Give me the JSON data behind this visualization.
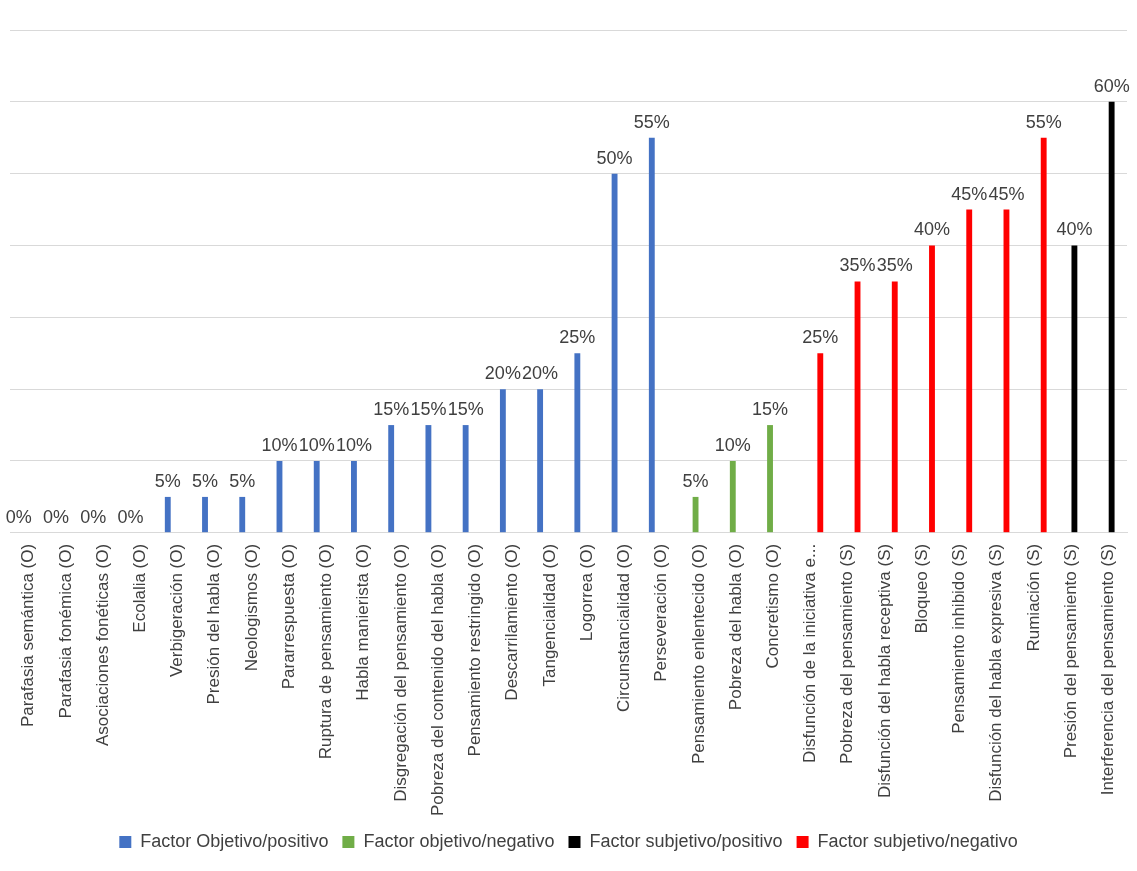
{
  "chart_data": {
    "type": "bar",
    "categories": [
      "Parafasia semántica (O)",
      "Parafasia fonémica (O)",
      "Asociaciones fonéticas (O)",
      "Ecolalia (O)",
      "Verbigeración (O)",
      "Presión del habla (O)",
      "Neologismos (O)",
      "Pararrespuesta (O)",
      "Ruptura de pensamiento (O)",
      "Habla manierista (O)",
      "Disgregación del pensamiento (O)",
      "Pobreza del contenido del habla (O)",
      "Pensamiento restringido (O)",
      "Descarrilamiento (O)",
      "Tangencialidad (O)",
      "Logorrea (O)",
      "Circunstancialidad (O)",
      "Perseveración (O)",
      "Pensamiento enlentecido (O)",
      "Pobreza del habla (O)",
      "Concretismo (O)",
      "Disfunción de la iniciativa e...",
      "Pobreza del pensamiento (S)",
      "Disfunción del habla receptiva (S)",
      "Bloqueo (S)",
      "Pensamiento inhibido (S)",
      "Disfunción del habla expresiva (S)",
      "Rumiación (S)",
      "Presión del pensamiento (S)",
      "Interferencia del pensamiento (S)"
    ],
    "series": [
      {
        "name": "Factor Objetivo/positivo",
        "color": "#4472c4",
        "values": [
          0,
          0,
          0,
          0,
          5,
          5,
          5,
          10,
          10,
          10,
          15,
          15,
          15,
          20,
          20,
          25,
          50,
          55,
          null,
          null,
          null,
          null,
          null,
          null,
          null,
          null,
          null,
          null,
          null,
          null
        ],
        "value_labels": [
          "0%",
          "0%",
          "0%",
          "0%",
          "5%",
          "5%",
          "5%",
          "10%",
          "10%",
          "10%",
          "15%",
          "15%",
          "15%",
          "20%",
          "20%",
          "25%",
          "50%",
          "55%",
          null,
          null,
          null,
          null,
          null,
          null,
          null,
          null,
          null,
          null,
          null,
          null
        ]
      },
      {
        "name": "Factor objetivo/negativo",
        "color": "#70ad47",
        "values": [
          null,
          null,
          null,
          null,
          null,
          null,
          null,
          null,
          null,
          null,
          null,
          null,
          null,
          null,
          null,
          null,
          null,
          null,
          5,
          10,
          15,
          null,
          null,
          null,
          null,
          null,
          null,
          null,
          null,
          null
        ],
        "value_labels": [
          null,
          null,
          null,
          null,
          null,
          null,
          null,
          null,
          null,
          null,
          null,
          null,
          null,
          null,
          null,
          null,
          null,
          null,
          "5%",
          "10%",
          "15%",
          null,
          null,
          null,
          null,
          null,
          null,
          null,
          null,
          null
        ]
      },
      {
        "name": "Factor subjetivo/positivo",
        "color": "#000000",
        "values": [
          null,
          null,
          null,
          null,
          null,
          null,
          null,
          null,
          null,
          null,
          null,
          null,
          null,
          null,
          null,
          null,
          null,
          null,
          null,
          null,
          null,
          null,
          null,
          null,
          null,
          null,
          null,
          null,
          40,
          60
        ],
        "value_labels": [
          null,
          null,
          null,
          null,
          null,
          null,
          null,
          null,
          null,
          null,
          null,
          null,
          null,
          null,
          null,
          null,
          null,
          null,
          null,
          null,
          null,
          null,
          null,
          null,
          null,
          null,
          null,
          null,
          "40%",
          "60%"
        ]
      },
      {
        "name": "Factor subjetivo/negativo",
        "color": "#ff0000",
        "values": [
          null,
          null,
          null,
          null,
          null,
          null,
          null,
          null,
          null,
          null,
          null,
          null,
          null,
          null,
          null,
          null,
          null,
          null,
          null,
          null,
          null,
          25,
          35,
          35,
          40,
          45,
          45,
          55,
          null,
          null
        ],
        "value_labels": [
          null,
          null,
          null,
          null,
          null,
          null,
          null,
          null,
          null,
          null,
          null,
          null,
          null,
          null,
          null,
          null,
          null,
          null,
          null,
          null,
          null,
          "25%",
          "35%",
          "35%",
          "40%",
          "45%",
          "45%",
          "55%",
          null,
          null
        ]
      }
    ],
    "ylim": [
      0,
      70
    ],
    "yticks": [
      {
        "value": 0,
        "label": null
      },
      {
        "value": 10,
        "label": null
      },
      {
        "value": 20,
        "label": null
      },
      {
        "value": 30,
        "label": null
      },
      {
        "value": 40,
        "label": null
      },
      {
        "value": 50,
        "label": null
      },
      {
        "value": 60,
        "label": null
      },
      {
        "value": 70,
        "label": null
      }
    ],
    "tick_labels": "x",
    "grid": "y",
    "legend": "bottom"
  }
}
